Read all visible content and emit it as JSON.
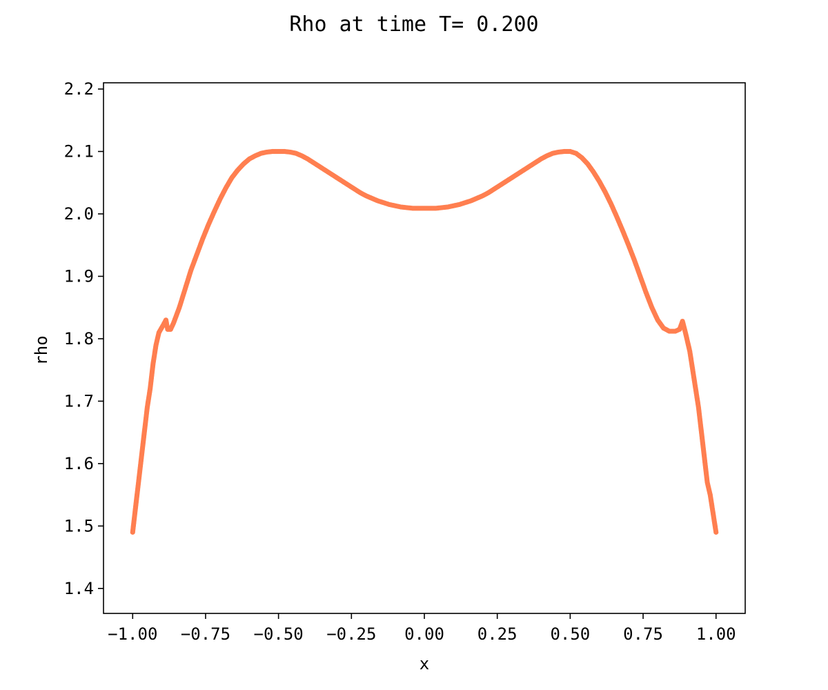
{
  "chart_data": {
    "type": "scatter",
    "title": "Rho at time T= 0.200",
    "xlabel": "x",
    "ylabel": "rho",
    "xlim": [
      -1.1,
      1.1
    ],
    "ylim": [
      1.36,
      2.21
    ],
    "x_ticks": [
      -1.0,
      -0.75,
      -0.5,
      -0.25,
      0.0,
      0.25,
      0.5,
      0.75,
      1.0
    ],
    "x_tick_labels": [
      "−1.00",
      "−0.75",
      "−0.50",
      "−0.25",
      "0.00",
      "0.25",
      "0.50",
      "0.75",
      "1.00"
    ],
    "y_ticks": [
      1.4,
      1.5,
      1.6,
      1.7,
      1.8,
      1.9,
      2.0,
      2.1,
      2.2
    ],
    "y_tick_labels": [
      "1.4",
      "1.5",
      "1.6",
      "1.7",
      "1.8",
      "1.9",
      "2.0",
      "2.1",
      "2.2"
    ],
    "grid": false,
    "series": [
      {
        "color": "#ff7f50",
        "points": [
          [
            -1.0,
            1.49
          ],
          [
            -0.99,
            1.53
          ],
          [
            -0.98,
            1.57
          ],
          [
            -0.97,
            1.61
          ],
          [
            -0.96,
            1.65
          ],
          [
            -0.95,
            1.69
          ],
          [
            -0.94,
            1.72
          ],
          [
            -0.93,
            1.76
          ],
          [
            -0.92,
            1.79
          ],
          [
            -0.91,
            1.81
          ],
          [
            -0.895,
            1.822
          ],
          [
            -0.886,
            1.83
          ],
          [
            -0.88,
            1.815
          ],
          [
            -0.87,
            1.815
          ],
          [
            -0.86,
            1.825
          ],
          [
            -0.84,
            1.85
          ],
          [
            -0.82,
            1.88
          ],
          [
            -0.8,
            1.91
          ],
          [
            -0.78,
            1.935
          ],
          [
            -0.76,
            1.96
          ],
          [
            -0.74,
            1.983
          ],
          [
            -0.72,
            2.004
          ],
          [
            -0.7,
            2.024
          ],
          [
            -0.68,
            2.042
          ],
          [
            -0.66,
            2.058
          ],
          [
            -0.64,
            2.07
          ],
          [
            -0.62,
            2.08
          ],
          [
            -0.6,
            2.088
          ],
          [
            -0.58,
            2.093
          ],
          [
            -0.56,
            2.097
          ],
          [
            -0.54,
            2.099
          ],
          [
            -0.52,
            2.1
          ],
          [
            -0.5,
            2.1
          ],
          [
            -0.48,
            2.1
          ],
          [
            -0.46,
            2.099
          ],
          [
            -0.44,
            2.097
          ],
          [
            -0.42,
            2.093
          ],
          [
            -0.4,
            2.088
          ],
          [
            -0.38,
            2.082
          ],
          [
            -0.36,
            2.076
          ],
          [
            -0.34,
            2.07
          ],
          [
            -0.32,
            2.064
          ],
          [
            -0.3,
            2.058
          ],
          [
            -0.28,
            2.052
          ],
          [
            -0.26,
            2.046
          ],
          [
            -0.24,
            2.04
          ],
          [
            -0.22,
            2.034
          ],
          [
            -0.2,
            2.029
          ],
          [
            -0.18,
            2.025
          ],
          [
            -0.16,
            2.021
          ],
          [
            -0.14,
            2.018
          ],
          [
            -0.12,
            2.015
          ],
          [
            -0.1,
            2.013
          ],
          [
            -0.08,
            2.011
          ],
          [
            -0.06,
            2.01
          ],
          [
            -0.04,
            2.009
          ],
          [
            -0.02,
            2.009
          ],
          [
            0.0,
            2.009
          ],
          [
            0.02,
            2.009
          ],
          [
            0.04,
            2.009
          ],
          [
            0.06,
            2.01
          ],
          [
            0.08,
            2.011
          ],
          [
            0.1,
            2.013
          ],
          [
            0.12,
            2.015
          ],
          [
            0.14,
            2.018
          ],
          [
            0.16,
            2.021
          ],
          [
            0.18,
            2.025
          ],
          [
            0.2,
            2.029
          ],
          [
            0.22,
            2.034
          ],
          [
            0.24,
            2.04
          ],
          [
            0.26,
            2.046
          ],
          [
            0.28,
            2.052
          ],
          [
            0.3,
            2.058
          ],
          [
            0.32,
            2.064
          ],
          [
            0.34,
            2.07
          ],
          [
            0.36,
            2.076
          ],
          [
            0.38,
            2.082
          ],
          [
            0.4,
            2.088
          ],
          [
            0.42,
            2.093
          ],
          [
            0.44,
            2.097
          ],
          [
            0.46,
            2.099
          ],
          [
            0.48,
            2.1
          ],
          [
            0.5,
            2.1
          ],
          [
            0.52,
            2.097
          ],
          [
            0.54,
            2.09
          ],
          [
            0.56,
            2.08
          ],
          [
            0.58,
            2.067
          ],
          [
            0.6,
            2.052
          ],
          [
            0.62,
            2.035
          ],
          [
            0.64,
            2.016
          ],
          [
            0.66,
            1.995
          ],
          [
            0.68,
            1.973
          ],
          [
            0.7,
            1.95
          ],
          [
            0.72,
            1.926
          ],
          [
            0.74,
            1.9
          ],
          [
            0.76,
            1.874
          ],
          [
            0.78,
            1.85
          ],
          [
            0.8,
            1.83
          ],
          [
            0.82,
            1.817
          ],
          [
            0.84,
            1.812
          ],
          [
            0.86,
            1.812
          ],
          [
            0.875,
            1.815
          ],
          [
            0.885,
            1.828
          ],
          [
            0.895,
            1.81
          ],
          [
            0.91,
            1.78
          ],
          [
            0.92,
            1.75
          ],
          [
            0.93,
            1.72
          ],
          [
            0.94,
            1.69
          ],
          [
            0.95,
            1.65
          ],
          [
            0.96,
            1.61
          ],
          [
            0.97,
            1.57
          ],
          [
            0.98,
            1.55
          ],
          [
            0.99,
            1.52
          ],
          [
            1.0,
            1.49
          ]
        ]
      }
    ]
  }
}
